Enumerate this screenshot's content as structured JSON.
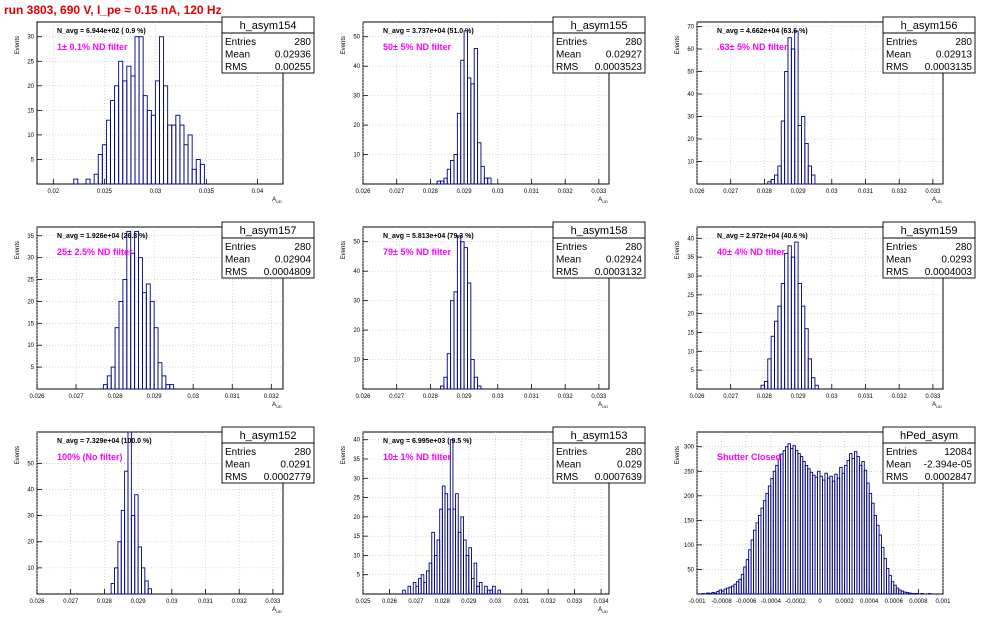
{
  "page_title": "run 3803,   690 V, I_pe ≈ 0.15 nA, 120 Hz",
  "colors": {
    "hist_line": "#000080",
    "annotation": "#ff00ff",
    "title": "#e00000",
    "grid": "#bbbbbb"
  },
  "chart_data": [
    {
      "type": "bar",
      "name": "h_asym154",
      "ylabel": "Events",
      "xlabel": "A_UD",
      "xlim": [
        0.0184,
        0.0425
      ],
      "ylim": [
        0,
        33
      ],
      "xticks": [
        "0.02",
        "0.025",
        "0.03",
        "0.035",
        "0.04"
      ],
      "xtick_values": [
        0.02,
        0.025,
        0.03,
        0.035,
        0.04
      ],
      "yticks": [
        "5",
        "10",
        "15",
        "20",
        "25",
        "30"
      ],
      "ytick_values": [
        5,
        10,
        15,
        20,
        25,
        30
      ],
      "navg": "N_avg = 6.944e+02 ( 0.9 %)",
      "annotation": "1± 0.1% ND filter",
      "stats": {
        "title": "h_asym154",
        "rows": [
          [
            "Entries",
            "280"
          ],
          [
            "Mean",
            "0.02936"
          ],
          [
            "RMS",
            "0.00255"
          ]
        ]
      },
      "bin_start": 0.022,
      "bin_width": 0.0004,
      "values": [
        1,
        0,
        0,
        1,
        0,
        2,
        6,
        8,
        13,
        17,
        20,
        25,
        21,
        24,
        22,
        30,
        30,
        18,
        15,
        14,
        21,
        30,
        20,
        12,
        12,
        14,
        12,
        8,
        10,
        3,
        5,
        4
      ]
    },
    {
      "type": "bar",
      "name": "h_asym155",
      "ylabel": "Events",
      "xlabel": "A_UD",
      "xlim": [
        0.026,
        0.0333
      ],
      "ylim": [
        0,
        55
      ],
      "xticks": [
        "0.026",
        "0.027",
        "0.028",
        "0.029",
        "0.03",
        "0.031",
        "0.032",
        "0.033"
      ],
      "xtick_values": [
        0.026,
        0.027,
        0.028,
        0.029,
        0.03,
        0.031,
        0.032,
        0.033
      ],
      "yticks": [
        "10",
        "20",
        "30",
        "40",
        "50"
      ],
      "ytick_values": [
        10,
        20,
        30,
        40,
        50
      ],
      "navg": "N_avg = 3.737e+04 (51.0 %)",
      "annotation": "50± 5% ND filter",
      "stats": {
        "title": "h_asym155",
        "rows": [
          [
            "Entries",
            "280"
          ],
          [
            "Mean",
            "0.02927"
          ],
          [
            "RMS",
            "0.0003523"
          ]
        ]
      },
      "bin_start": 0.0282,
      "bin_width": 0.0001,
      "values": [
        1,
        1,
        2,
        5,
        8,
        10,
        24,
        42,
        52,
        36,
        34,
        46,
        14,
        6,
        2,
        2
      ]
    },
    {
      "type": "bar",
      "name": "h_asym156",
      "ylabel": "Events",
      "xlabel": "A_UD",
      "xlim": [
        0.026,
        0.0333
      ],
      "ylim": [
        0,
        72
      ],
      "xticks": [
        "0.026",
        "0.027",
        "0.028",
        "0.029",
        "0.03",
        "0.031",
        "0.032",
        "0.033"
      ],
      "xtick_values": [
        0.026,
        0.027,
        0.028,
        0.029,
        0.03,
        0.031,
        0.032,
        0.033
      ],
      "yticks": [
        "10",
        "20",
        "30",
        "40",
        "50",
        "60",
        "70"
      ],
      "ytick_values": [
        10,
        20,
        30,
        40,
        50,
        60,
        70
      ],
      "navg": "N_avg = 4.662e+04 (63.6 %)",
      "annotation": ".63± 5% ND filter",
      "stats": {
        "title": "h_asym156",
        "rows": [
          [
            "Entries",
            "280"
          ],
          [
            "Mean",
            "0.02913"
          ],
          [
            "RMS",
            "0.0003135"
          ]
        ]
      },
      "bin_start": 0.0281,
      "bin_width": 0.0001,
      "values": [
        1,
        2,
        4,
        8,
        28,
        50,
        65,
        60,
        68,
        26,
        30,
        18,
        8,
        4
      ]
    },
    {
      "type": "bar",
      "name": "h_asym157",
      "ylabel": "Events",
      "xlabel": "A_UD",
      "xlim": [
        0.026,
        0.0323
      ],
      "ylim": [
        0,
        37
      ],
      "xticks": [
        "0.026",
        "0.027",
        "0.028",
        "0.029",
        "0.03",
        "0.031",
        "0.032"
      ],
      "xtick_values": [
        0.026,
        0.027,
        0.028,
        0.029,
        0.03,
        0.031,
        0.032
      ],
      "yticks": [
        "5",
        "10",
        "15",
        "20",
        "25",
        "30",
        "35"
      ],
      "ytick_values": [
        5,
        10,
        15,
        20,
        25,
        30,
        35
      ],
      "navg": "N_avg = 1.926e+04 (26.3 %)",
      "annotation": "25± 2.5% ND filter",
      "stats": {
        "title": "h_asym157",
        "rows": [
          [
            "Entries",
            "280"
          ],
          [
            "Mean",
            "0.02904"
          ],
          [
            "RMS",
            "0.0004809"
          ]
        ]
      },
      "bin_start": 0.0277,
      "bin_width": 0.0001,
      "values": [
        1,
        3,
        5,
        14,
        20,
        25,
        36,
        31,
        36,
        30,
        22,
        24,
        20,
        14,
        6,
        3,
        1,
        1
      ]
    },
    {
      "type": "bar",
      "name": "h_asym158",
      "ylabel": "Events",
      "xlabel": "A_UD",
      "xlim": [
        0.026,
        0.0333
      ],
      "ylim": [
        0,
        55
      ],
      "xticks": [
        "0.026",
        "0.027",
        "0.028",
        "0.029",
        "0.03",
        "0.031",
        "0.032",
        "0.033"
      ],
      "xtick_values": [
        0.026,
        0.027,
        0.028,
        0.029,
        0.03,
        0.031,
        0.032,
        0.033
      ],
      "yticks": [
        "10",
        "20",
        "30",
        "40",
        "50"
      ],
      "ytick_values": [
        10,
        20,
        30,
        40,
        50
      ],
      "navg": "N_avg = 5.813e+04 (79.3 %)",
      "annotation": "79± 5% ND filter",
      "stats": {
        "title": "h_asym158",
        "rows": [
          [
            "Entries",
            "280"
          ],
          [
            "Mean",
            "0.02924"
          ],
          [
            "RMS",
            "0.0003132"
          ]
        ]
      },
      "bin_start": 0.0283,
      "bin_width": 0.0001,
      "values": [
        1,
        4,
        12,
        30,
        33,
        52,
        50,
        48,
        36,
        10,
        4,
        1
      ]
    },
    {
      "type": "bar",
      "name": "h_asym159",
      "ylabel": "Events",
      "xlabel": "A_UD",
      "xlim": [
        0.026,
        0.0333
      ],
      "ylim": [
        0,
        43
      ],
      "xticks": [
        "0.026",
        "0.027",
        "0.028",
        "0.029",
        "0.03",
        "0.031",
        "0.032",
        "0.033"
      ],
      "xtick_values": [
        0.026,
        0.027,
        0.028,
        0.029,
        0.03,
        0.031,
        0.032,
        0.033
      ],
      "yticks": [
        "5",
        "10",
        "15",
        "20",
        "25",
        "30",
        "35",
        "40"
      ],
      "ytick_values": [
        5,
        10,
        15,
        20,
        25,
        30,
        35,
        40
      ],
      "navg": "N_avg = 2.972e+04 (40.6 %)",
      "annotation": "40± 4% ND filter",
      "stats": {
        "title": "h_asym159",
        "rows": [
          [
            "Entries",
            "280"
          ],
          [
            "Mean",
            "0.0293"
          ],
          [
            "RMS",
            "0.0004003"
          ]
        ]
      },
      "bin_start": 0.0279,
      "bin_width": 0.0001,
      "values": [
        1,
        2,
        8,
        14,
        18,
        22,
        28,
        36,
        38,
        35,
        39,
        28,
        22,
        16,
        8,
        3,
        1
      ]
    },
    {
      "type": "bar",
      "name": "h_asym152",
      "ylabel": "Events",
      "xlabel": "A_UD",
      "xlim": [
        0.026,
        0.0333
      ],
      "ylim": [
        0,
        62
      ],
      "xticks": [
        "0.026",
        "0.027",
        "0.028",
        "0.029",
        "0.03",
        "0.031",
        "0.032",
        "0.033"
      ],
      "xtick_values": [
        0.026,
        0.027,
        0.028,
        0.029,
        0.03,
        0.031,
        0.032,
        0.033
      ],
      "yticks": [
        "10",
        "20",
        "30",
        "40",
        "50"
      ],
      "ytick_values": [
        10,
        20,
        30,
        40,
        50
      ],
      "navg": "N_avg = 7.329e+04 (100.0 %)",
      "annotation": "100% (No filter)",
      "stats": {
        "title": "h_asym152",
        "rows": [
          [
            "Entries",
            "280"
          ],
          [
            "Mean",
            "0.0291"
          ],
          [
            "RMS",
            "0.0002779"
          ]
        ]
      },
      "bin_start": 0.0282,
      "bin_width": 0.0001,
      "values": [
        4,
        10,
        20,
        32,
        47,
        63,
        30,
        38,
        18,
        10,
        5,
        2
      ]
    },
    {
      "type": "bar",
      "name": "h_asym153",
      "ylabel": "Events",
      "xlabel": "A_UD",
      "xlim": [
        0.025,
        0.0343
      ],
      "ylim": [
        0,
        42
      ],
      "xticks": [
        "0.025",
        "0.026",
        "0.027",
        "0.028",
        "0.029",
        "0.03",
        "0.031",
        "0.032",
        "0.033",
        "0.034"
      ],
      "xtick_values": [
        0.025,
        0.026,
        0.027,
        0.028,
        0.029,
        0.03,
        0.031,
        0.032,
        0.033,
        0.034
      ],
      "yticks": [
        "5",
        "10",
        "15",
        "20",
        "25",
        "30",
        "35",
        "40"
      ],
      "ytick_values": [
        5,
        10,
        15,
        20,
        25,
        30,
        35,
        40
      ],
      "navg": "N_avg = 6.995e+03 ( 9.5 %)",
      "annotation": "10± 1% ND filter",
      "stats": {
        "title": "h_asym153",
        "rows": [
          [
            "Entries",
            "280"
          ],
          [
            "Mean",
            "0.029"
          ],
          [
            "RMS",
            "0.0007639"
          ]
        ]
      },
      "bin_start": 0.0265,
      "bin_width": 0.0001,
      "values": [
        1,
        0,
        2,
        0,
        3,
        2,
        4,
        5,
        3,
        6,
        8,
        16,
        10,
        14,
        22,
        28,
        26,
        22,
        40,
        22,
        26,
        16,
        20,
        14,
        10,
        12,
        4,
        8,
        2,
        3,
        0,
        2,
        1,
        1,
        2,
        0,
        1
      ]
    },
    {
      "type": "bar",
      "name": "hPed_asym",
      "ylabel": "Events",
      "xlabel": "",
      "xlim": [
        -0.001,
        0.001
      ],
      "ylim": [
        0,
        330
      ],
      "xticks": [
        "-0.001",
        "-0.0008",
        "-0.0006",
        "-0.0004",
        "-0.0002",
        "0",
        "0.0002",
        "0.0004",
        "0.0006",
        "0.0008",
        "0.001"
      ],
      "xtick_values": [
        -0.001,
        -0.0008,
        -0.0006,
        -0.0004,
        -0.0002,
        0,
        0.0002,
        0.0004,
        0.0006,
        0.0008,
        0.001
      ],
      "yticks": [
        "50",
        "100",
        "150",
        "200",
        "250",
        "300"
      ],
      "ytick_values": [
        50,
        100,
        150,
        200,
        250,
        300
      ],
      "navg": "",
      "annotation": "Shutter Closed",
      "stats": {
        "title": "hPed_asym",
        "rows": [
          [
            "Entries",
            "12084"
          ],
          [
            "Mean",
            "-2.394e-05"
          ],
          [
            "RMS",
            "0.0002847"
          ]
        ]
      },
      "bin_start": -0.00098,
      "bin_width": 2e-05,
      "values": [
        0,
        1,
        0,
        2,
        1,
        3,
        2,
        5,
        8,
        6,
        10,
        12,
        14,
        16,
        20,
        25,
        30,
        40,
        55,
        70,
        90,
        110,
        130,
        145,
        160,
        175,
        190,
        205,
        220,
        235,
        250,
        262,
        275,
        285,
        292,
        300,
        306,
        296,
        302,
        292,
        286,
        280,
        270,
        262,
        255,
        248,
        242,
        238,
        250,
        240,
        232,
        246,
        236,
        240,
        230,
        244,
        236,
        258,
        246,
        262,
        272,
        286,
        276,
        290,
        280,
        262,
        270,
        252,
        226,
        205,
        185,
        160,
        140,
        120,
        95,
        72,
        52,
        38,
        25,
        18,
        12,
        8,
        6,
        4,
        3,
        2,
        1,
        1,
        1,
        0,
        1,
        0,
        0,
        1,
        0,
        0,
        0,
        0,
        0,
        0
      ]
    }
  ]
}
